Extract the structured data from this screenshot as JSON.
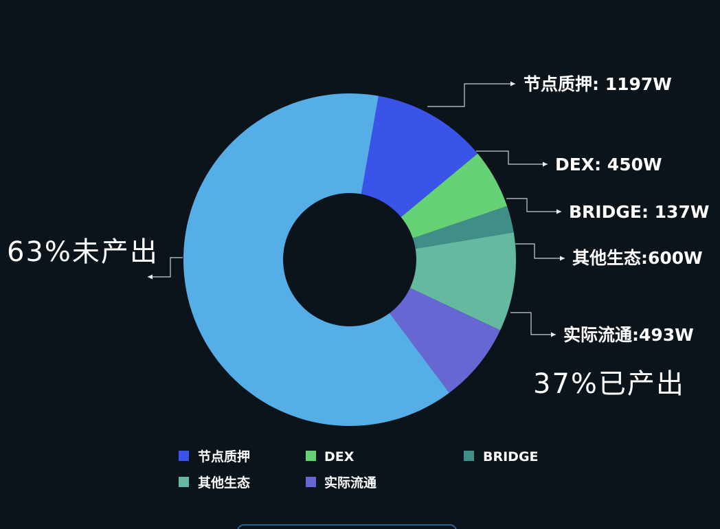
{
  "chart_data": {
    "type": "pie",
    "title": "",
    "hole": true,
    "slices": [
      {
        "name": "未产出",
        "value": 63,
        "color": "#56aee7"
      },
      {
        "name": "节点质押",
        "value": 11.2,
        "color": "#3a53e8"
      },
      {
        "name": "DEX",
        "value": 5.8,
        "color": "#66d276"
      },
      {
        "name": "BRIDGE",
        "value": 2.6,
        "color": "#3f8f88"
      },
      {
        "name": "其他生态",
        "value": 9.6,
        "color": "#65b9a0"
      },
      {
        "name": "实际流通",
        "value": 7.8,
        "color": "#6767d3"
      }
    ],
    "callouts": [
      {
        "slice": 1,
        "text": "节点质押: 1197W"
      },
      {
        "slice": 2,
        "text": "DEX: 450W"
      },
      {
        "slice": 3,
        "text": "BRIDGE: 137W"
      },
      {
        "slice": 4,
        "text": "其他生态:600W"
      },
      {
        "slice": 5,
        "text": "实际流通:493W"
      }
    ],
    "annotations": {
      "unproduced": "63%未产出",
      "produced": "37%已产出"
    },
    "legend": {
      "position": "bottom",
      "entries": [
        {
          "name": "节点质押",
          "color": "#3a53e8"
        },
        {
          "name": "DEX",
          "color": "#66d276"
        },
        {
          "name": "BRIDGE",
          "color": "#3f8f88"
        },
        {
          "name": "其他生态",
          "color": "#65b9a0"
        },
        {
          "name": "实际流通",
          "color": "#6767d3"
        }
      ]
    }
  }
}
